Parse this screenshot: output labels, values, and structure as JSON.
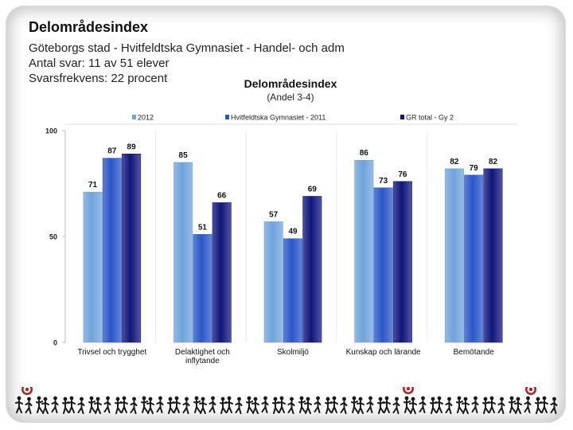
{
  "slide": {
    "title": "Delområdesindex",
    "lines": [
      "Göteborgs stad - Hvitfeldtska Gymnasiet - Handel- och adm",
      "Antal svar: 11 av 51 elever",
      "Svarsfrekvens: 22 procent"
    ]
  },
  "chart_data": {
    "type": "bar",
    "title": "Delområdesindex",
    "subtitle": "(Andel 3-4)",
    "categories": [
      "Trivsel och trygghet",
      "Delaktighet och inflytande",
      "Skolmiljö",
      "Kunskap och lärande",
      "Bemötande"
    ],
    "category_lines": [
      [
        "Trivsel och trygghet"
      ],
      [
        "Delaktighet och",
        "inflytande"
      ],
      [
        "Skolmiljö"
      ],
      [
        "Kunskap och lärande"
      ],
      [
        "Bemötande"
      ]
    ],
    "series": [
      {
        "name": "2012",
        "values": [
          71,
          85,
          57,
          86,
          82
        ],
        "color": "#6fa3dc"
      },
      {
        "name": "Hvitfeldtska Gymnasiet - 2011",
        "values": [
          87,
          51,
          49,
          73,
          79
        ],
        "color": "#2a56c8"
      },
      {
        "name": "GR total - Gy 2",
        "values": [
          89,
          66,
          69,
          76,
          82
        ],
        "color": "#10157a"
      }
    ],
    "ylim": [
      0,
      100
    ],
    "yticks": [
      0,
      50,
      100
    ],
    "legend_position": "top",
    "grid": false
  }
}
